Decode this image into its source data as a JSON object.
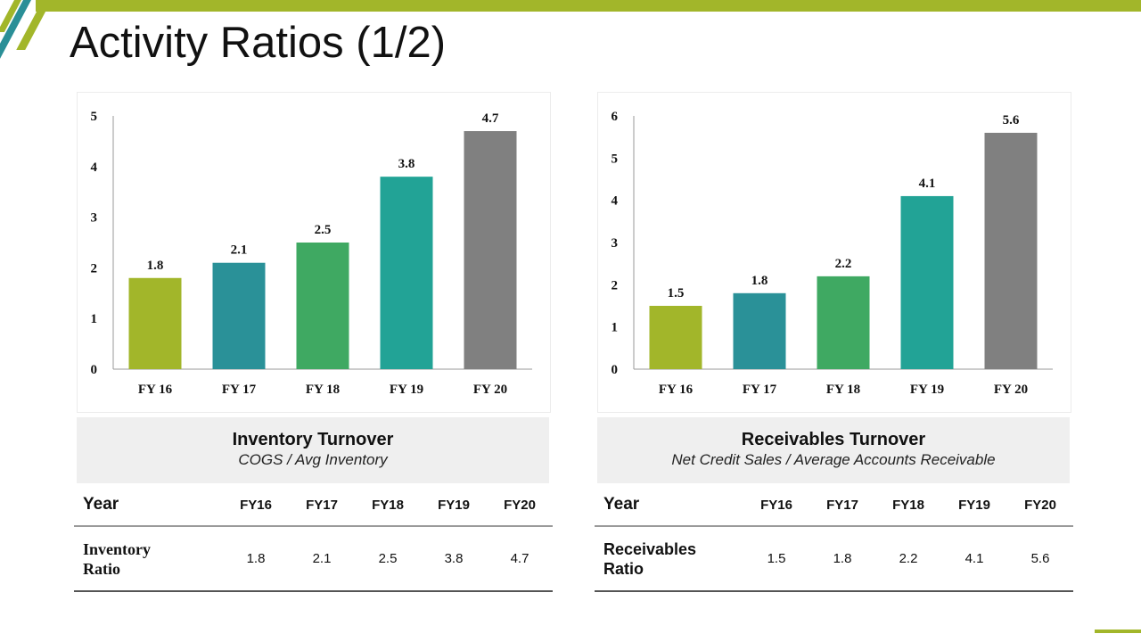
{
  "page": {
    "title": "Activity Ratios (1/2)",
    "colors": {
      "accent_green": "#a2b62a",
      "accent_teal": "#2a8f97"
    }
  },
  "chart_data": [
    {
      "type": "bar",
      "title": "Inventory Turnover",
      "categories": [
        "FY 16",
        "FY 17",
        "FY 18",
        "FY 19",
        "FY 20"
      ],
      "values": [
        1.8,
        2.1,
        2.5,
        3.8,
        4.7
      ],
      "data_labels": [
        "1.8",
        "2.1",
        "2.5",
        "3.8",
        "4.7"
      ],
      "colors": [
        "#a2b62a",
        "#2a9198",
        "#3fa962",
        "#22a396",
        "#808080"
      ],
      "ylim": [
        0,
        5
      ],
      "yticks": [
        0,
        1,
        2,
        3,
        4,
        5
      ],
      "xlabel": "",
      "ylabel": "",
      "grid": false
    },
    {
      "type": "bar",
      "title": "Receivables Turnover",
      "categories": [
        "FY 16",
        "FY 17",
        "FY 18",
        "FY 19",
        "FY 20"
      ],
      "values": [
        1.5,
        1.8,
        2.2,
        4.1,
        5.6
      ],
      "data_labels": [
        "1.5",
        "1.8",
        "2.2",
        "4.1",
        "5.6"
      ],
      "colors": [
        "#a2b62a",
        "#2a9198",
        "#3fa962",
        "#22a396",
        "#808080"
      ],
      "ylim": [
        0,
        6
      ],
      "yticks": [
        0,
        1,
        2,
        3,
        4,
        5,
        6
      ],
      "xlabel": "",
      "ylabel": "",
      "grid": false
    }
  ],
  "captions": [
    {
      "title": "Inventory Turnover",
      "subtitle": "COGS / Avg Inventory"
    },
    {
      "title": "Receivables Turnover",
      "subtitle": "Net Credit Sales / Average Accounts Receivable"
    }
  ],
  "tables": [
    {
      "year_header": "Year",
      "columns": [
        "FY16",
        "FY17",
        "FY18",
        "FY19",
        "FY20"
      ],
      "row_label": "Inventory Ratio",
      "values": [
        "1.8",
        "2.1",
        "2.5",
        "3.8",
        "4.7"
      ]
    },
    {
      "year_header": "Year",
      "columns": [
        "FY16",
        "FY17",
        "FY18",
        "FY19",
        "FY20"
      ],
      "row_label": "Receivables Ratio",
      "values": [
        "1.5",
        "1.8",
        "2.2",
        "4.1",
        "5.6"
      ]
    }
  ]
}
